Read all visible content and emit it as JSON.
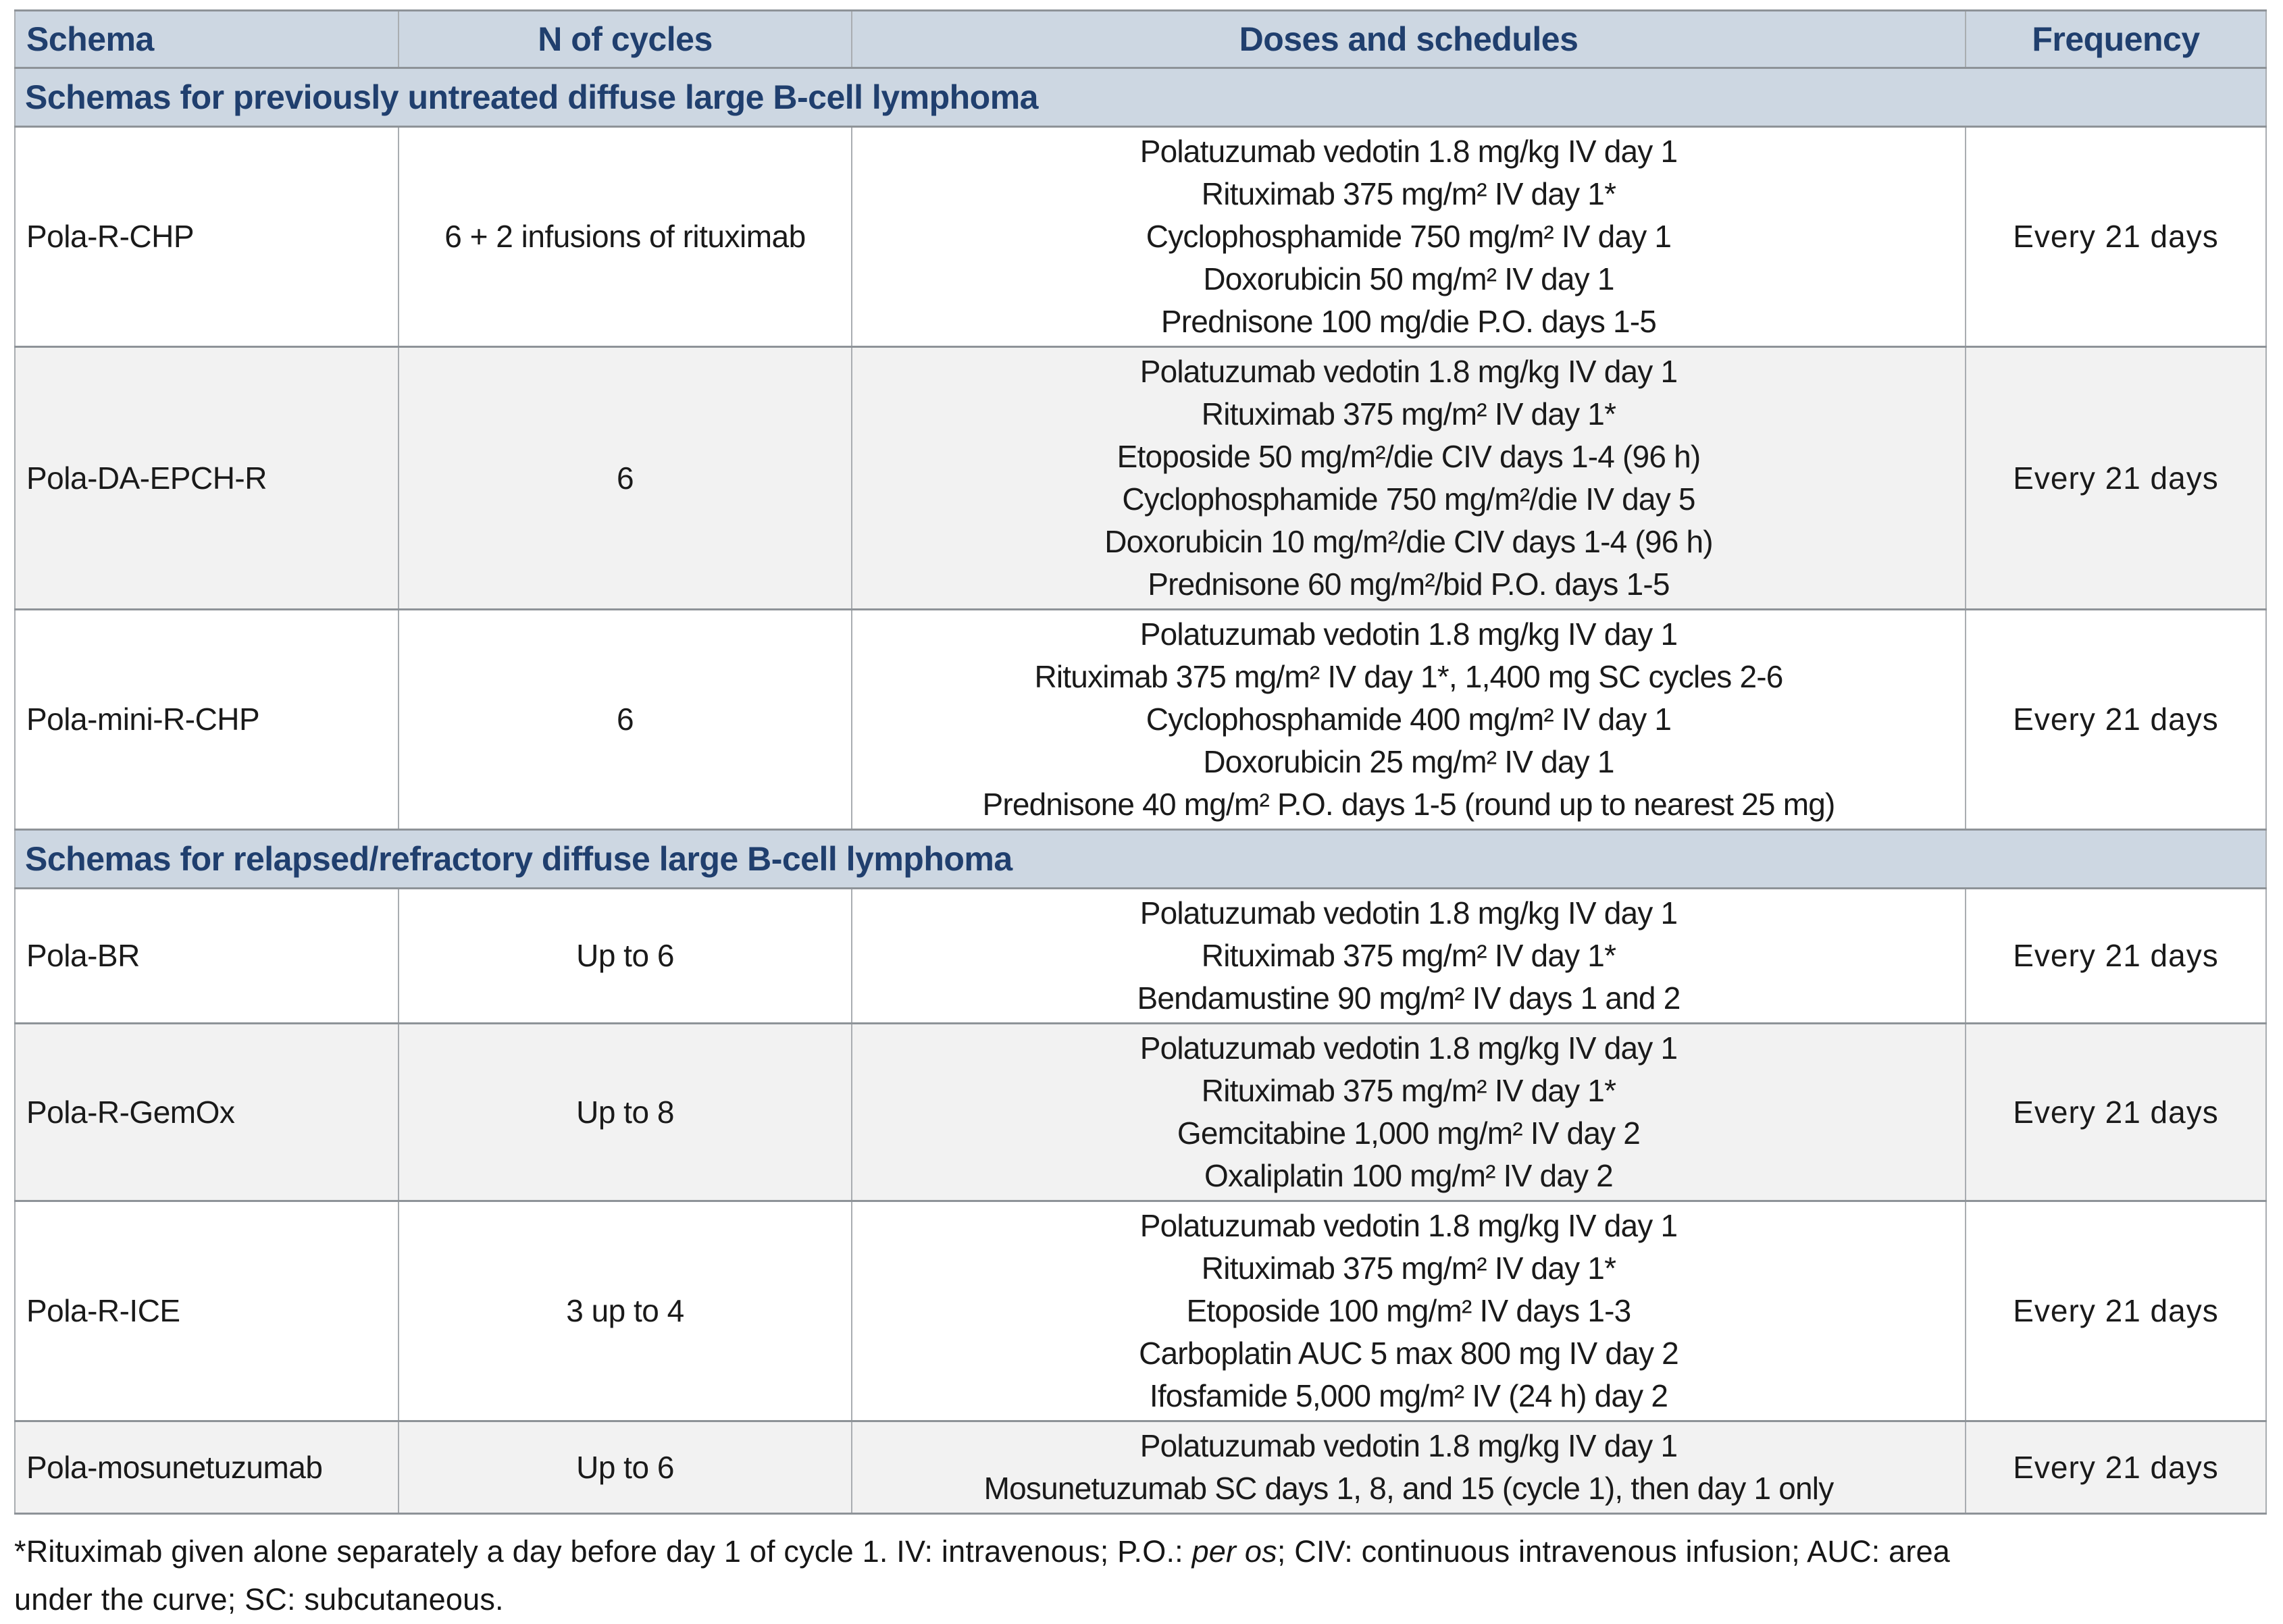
{
  "table": {
    "columns": [
      "Schema",
      "N of cycles",
      "Doses and schedules",
      "Frequency"
    ],
    "sections": [
      {
        "header": "Schemas for previously untreated diffuse large B-cell lymphoma",
        "rows": [
          {
            "schema": "Pola-R-CHP",
            "cycles": "6 + 2 infusions of rituximab",
            "doses": [
              "Polatuzumab vedotin 1.8 mg/kg IV day 1",
              "Rituximab 375 mg/m² IV day 1*",
              "Cyclophosphamide 750 mg/m² IV day 1",
              "Doxorubicin 50 mg/m² IV day 1",
              "Prednisone 100 mg/die P.O. days 1-5"
            ],
            "frequency": "Every 21 days"
          },
          {
            "schema": "Pola-DA-EPCH-R",
            "cycles": "6",
            "doses": [
              "Polatuzumab vedotin 1.8 mg/kg IV day 1",
              "Rituximab 375 mg/m² IV day 1*",
              "Etoposide 50 mg/m²/die CIV days 1-4 (96 h)",
              "Cyclophosphamide 750 mg/m²/die IV day 5",
              "Doxorubicin 10 mg/m²/die CIV days 1-4 (96 h)",
              "Prednisone 60 mg/m²/bid P.O. days 1-5"
            ],
            "frequency": "Every 21 days"
          },
          {
            "schema": "Pola-mini-R-CHP",
            "cycles": "6",
            "doses": [
              "Polatuzumab vedotin 1.8 mg/kg IV day 1",
              "Rituximab 375 mg/m² IV day 1*, 1,400 mg SC cycles 2-6",
              "Cyclophosphamide 400 mg/m² IV day 1",
              "Doxorubicin 25 mg/m² IV day 1",
              "Prednisone 40 mg/m² P.O. days 1-5 (round up to nearest 25 mg)"
            ],
            "frequency": "Every 21 days"
          }
        ]
      },
      {
        "header": "Schemas for relapsed/refractory diffuse large B-cell lymphoma",
        "rows": [
          {
            "schema": "Pola-BR",
            "cycles": "Up to 6",
            "doses": [
              "Polatuzumab vedotin 1.8 mg/kg IV day 1",
              "Rituximab 375 mg/m² IV day 1*",
              "Bendamustine 90 mg/m² IV days 1 and 2"
            ],
            "frequency": "Every 21 days"
          },
          {
            "schema": "Pola-R-GemOx",
            "cycles": "Up to 8",
            "doses": [
              "Polatuzumab vedotin 1.8 mg/kg IV day 1",
              "Rituximab 375 mg/m² IV day 1*",
              "Gemcitabine 1,000 mg/m² IV day 2",
              "Oxaliplatin 100 mg/m² IV day 2"
            ],
            "frequency": "Every 21 days"
          },
          {
            "schema": "Pola-R-ICE",
            "cycles": "3 up to 4",
            "doses": [
              "Polatuzumab vedotin 1.8 mg/kg IV day 1",
              "Rituximab 375 mg/m² IV day 1*",
              "Etoposide 100 mg/m² IV days 1-3",
              "Carboplatin AUC 5 max 800 mg IV day 2",
              "Ifosfamide 5,000 mg/m² IV (24 h) day 2"
            ],
            "frequency": "Every 21 days"
          },
          {
            "schema": "Pola-mosunetuzumab",
            "cycles": "Up to 6",
            "doses": [
              "Polatuzumab vedotin 1.8 mg/kg IV day 1",
              "Mosunetuzumab SC days 1, 8, and 15 (cycle 1), then day 1 only"
            ],
            "frequency": "Every 21 days"
          }
        ]
      }
    ]
  },
  "footnote": {
    "line1_pre": "*Rituximab given alone separately a day before day 1 of cycle 1. IV: intravenous; P.O.: ",
    "line1_italic": "per os",
    "line1_post": "; CIV: continuous intravenous infusion; AUC: area",
    "line2": "under the curve; SC: subcutaneous.",
    "colors": {
      "header_band": "#cdd7e2",
      "header_text": "#203f6e",
      "alt_row": "#f2f2f2",
      "border": "#8e9398"
    }
  }
}
